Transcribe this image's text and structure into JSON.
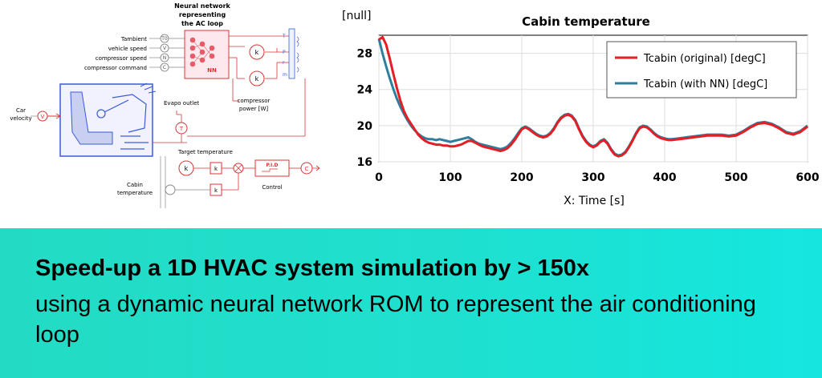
{
  "diagram": {
    "nn_title": [
      "Neural network",
      "representing",
      "the AC loop"
    ],
    "inputs": [
      {
        "label": "Tambient",
        "port": "T0"
      },
      {
        "label": "vehicle speed",
        "port": "V"
      },
      {
        "label": "compressor speed",
        "port": "N"
      },
      {
        "label": "compressor command",
        "port": "C"
      }
    ],
    "nn_label": "NN",
    "k_label": "k",
    "outputs": [
      "T",
      "P",
      "r",
      "m"
    ],
    "compressor_power": [
      "compressor",
      "power [W]"
    ],
    "car_velocity": [
      "Car",
      "velocity"
    ],
    "car_velocity_port": "V",
    "evapo_outlet": "Evapo outlet",
    "t_port": "T",
    "target_temperature": "Target temperature",
    "pid": "P.I.D",
    "c_port": "C",
    "control": "Control",
    "cabin_temperature": [
      "Cabin",
      "temperature"
    ]
  },
  "chart_data": {
    "type": "line",
    "title": "Cabin temperature",
    "ylabel": "[null]",
    "xlabel": "X: Time [s]",
    "xlim": [
      0,
      600
    ],
    "ylim": [
      16,
      30
    ],
    "xticks": [
      0,
      100,
      200,
      300,
      400,
      500,
      600
    ],
    "yticks": [
      16,
      20,
      24,
      28
    ],
    "legend_position": "top-right",
    "series": [
      {
        "name": "Tcabin (original) [degC]",
        "color": "#e31e24",
        "x": [
          0,
          5,
          10,
          15,
          20,
          25,
          30,
          35,
          40,
          45,
          50,
          55,
          60,
          65,
          70,
          75,
          80,
          85,
          90,
          95,
          100,
          105,
          110,
          115,
          120,
          125,
          130,
          135,
          140,
          145,
          150,
          155,
          160,
          165,
          170,
          175,
          180,
          185,
          190,
          195,
          200,
          205,
          210,
          215,
          220,
          225,
          230,
          235,
          240,
          245,
          250,
          255,
          260,
          265,
          270,
          275,
          280,
          285,
          290,
          295,
          300,
          305,
          310,
          315,
          320,
          325,
          330,
          335,
          340,
          345,
          350,
          355,
          360,
          365,
          370,
          375,
          380,
          385,
          390,
          395,
          400,
          405,
          410,
          420,
          430,
          440,
          450,
          460,
          470,
          480,
          490,
          500,
          510,
          520,
          530,
          540,
          550,
          560,
          570,
          580,
          590,
          600
        ],
        "y": [
          29.5,
          29.8,
          29.0,
          27.5,
          25.8,
          24.2,
          22.8,
          21.6,
          20.8,
          20.2,
          19.6,
          19.0,
          18.6,
          18.3,
          18.1,
          18.0,
          17.9,
          17.9,
          17.8,
          17.8,
          17.7,
          17.7,
          17.8,
          17.9,
          18.1,
          18.3,
          18.3,
          18.1,
          17.9,
          17.7,
          17.6,
          17.5,
          17.4,
          17.3,
          17.2,
          17.3,
          17.5,
          17.9,
          18.4,
          19.0,
          19.6,
          19.8,
          19.6,
          19.3,
          19.0,
          18.8,
          18.7,
          18.8,
          19.1,
          19.6,
          20.3,
          20.8,
          21.1,
          21.2,
          21.0,
          20.5,
          19.6,
          18.8,
          18.2,
          17.8,
          17.6,
          17.8,
          18.2,
          18.4,
          18.0,
          17.3,
          16.8,
          16.6,
          16.7,
          17.0,
          17.6,
          18.3,
          19.1,
          19.7,
          19.9,
          19.8,
          19.5,
          19.1,
          18.8,
          18.6,
          18.5,
          18.4,
          18.4,
          18.5,
          18.6,
          18.7,
          18.8,
          18.9,
          18.9,
          18.9,
          18.8,
          18.9,
          19.3,
          19.8,
          20.2,
          20.3,
          20.1,
          19.7,
          19.2,
          19.0,
          19.3,
          19.9
        ]
      },
      {
        "name": "Tcabin (with NN) [degC]",
        "color": "#2f7e9e",
        "x": [
          0,
          5,
          10,
          15,
          20,
          25,
          30,
          35,
          40,
          45,
          50,
          55,
          60,
          65,
          70,
          75,
          80,
          85,
          90,
          95,
          100,
          105,
          110,
          115,
          120,
          125,
          130,
          135,
          140,
          145,
          150,
          155,
          160,
          165,
          170,
          175,
          180,
          185,
          190,
          195,
          200,
          205,
          210,
          215,
          220,
          225,
          230,
          235,
          240,
          245,
          250,
          255,
          260,
          265,
          270,
          275,
          280,
          285,
          290,
          295,
          300,
          305,
          310,
          315,
          320,
          325,
          330,
          335,
          340,
          345,
          350,
          355,
          360,
          365,
          370,
          375,
          380,
          385,
          390,
          395,
          400,
          405,
          410,
          420,
          430,
          440,
          450,
          460,
          470,
          480,
          490,
          500,
          510,
          520,
          530,
          540,
          550,
          560,
          570,
          580,
          590,
          600
        ],
        "y": [
          29.6,
          28.0,
          26.6,
          25.3,
          24.1,
          23.0,
          22.1,
          21.3,
          20.6,
          20.0,
          19.5,
          19.1,
          18.8,
          18.6,
          18.5,
          18.5,
          18.4,
          18.5,
          18.4,
          18.3,
          18.2,
          18.3,
          18.4,
          18.5,
          18.6,
          18.7,
          18.5,
          18.2,
          18.0,
          17.9,
          17.8,
          17.7,
          17.6,
          17.5,
          17.4,
          17.5,
          17.7,
          18.1,
          18.6,
          19.2,
          19.7,
          19.9,
          19.7,
          19.4,
          19.1,
          18.9,
          18.8,
          18.9,
          19.2,
          19.7,
          20.4,
          20.9,
          21.2,
          21.3,
          21.1,
          20.6,
          19.7,
          18.9,
          18.3,
          17.9,
          17.7,
          17.9,
          18.3,
          18.5,
          18.1,
          17.4,
          16.9,
          16.7,
          16.8,
          17.1,
          17.7,
          18.4,
          19.2,
          19.8,
          20.0,
          19.9,
          19.6,
          19.2,
          18.9,
          18.7,
          18.6,
          18.5,
          18.5,
          18.6,
          18.7,
          18.8,
          18.9,
          19.0,
          19.0,
          19.0,
          18.9,
          19.0,
          19.4,
          19.9,
          20.3,
          20.4,
          20.2,
          19.8,
          19.3,
          19.1,
          19.4,
          20.0
        ]
      }
    ]
  },
  "banner": {
    "title": "Speed-up a 1D HVAC system simulation by > 150x",
    "subtitle": "using a dynamic neural network ROM to represent the air conditioning loop"
  }
}
